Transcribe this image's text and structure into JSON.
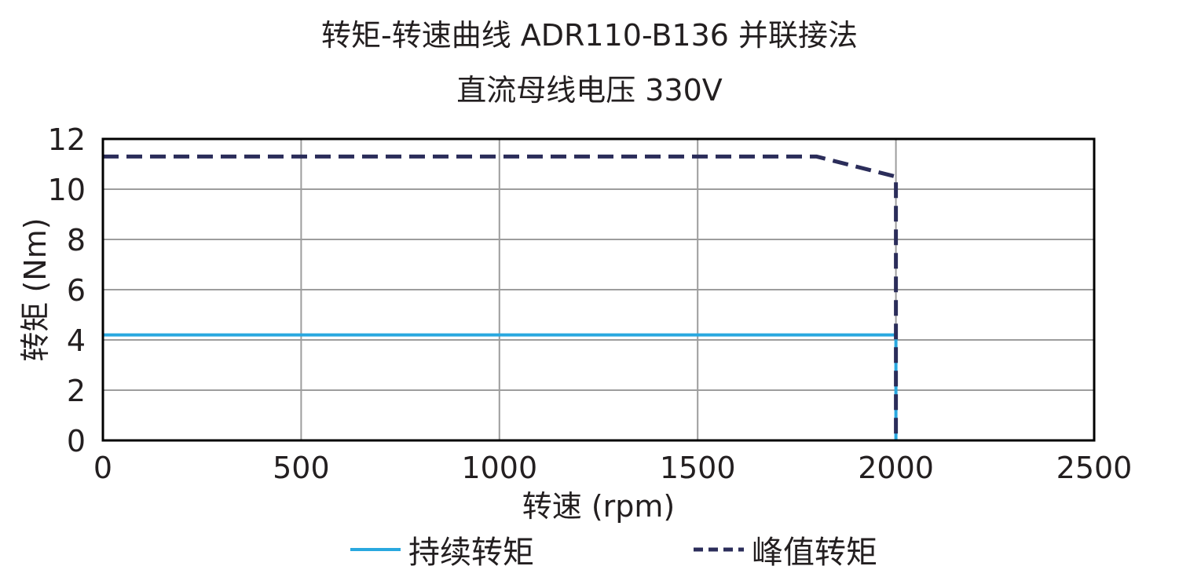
{
  "chart_data": {
    "type": "line",
    "title": "转矩-转速曲线 ADR110-B136 并联接法",
    "subtitle": "直流母线电压 330V",
    "xlabel": "转速 (rpm)",
    "ylabel": "转矩 (Nm)",
    "xlim": [
      0,
      2500
    ],
    "ylim": [
      0,
      12
    ],
    "xticks": [
      0,
      500,
      1000,
      1500,
      2000,
      2500
    ],
    "yticks": [
      0,
      2,
      4,
      6,
      8,
      10,
      12
    ],
    "grid": true,
    "legend_position": "bottom",
    "series": [
      {
        "name": "持续转矩",
        "color": "#29a8df",
        "style": "solid",
        "x": [
          0,
          2000,
          2000
        ],
        "y": [
          4.2,
          4.2,
          0
        ]
      },
      {
        "name": "峰值转矩",
        "color": "#2b2d5a",
        "style": "dashed",
        "x": [
          0,
          1800,
          2000,
          2000
        ],
        "y": [
          11.3,
          11.3,
          10.5,
          0
        ]
      }
    ]
  }
}
